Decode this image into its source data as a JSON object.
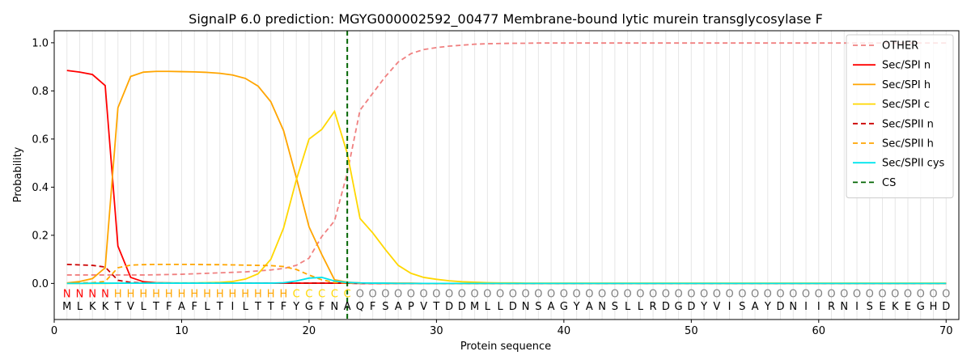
{
  "chart_data": {
    "type": "line",
    "title": "SignalP 6.0 prediction: MGYG000002592_00477 Membrane-bound lytic murein transglycosylase F",
    "xlabel": "Protein sequence",
    "ylabel": "Probability",
    "xlim": [
      0,
      71
    ],
    "ylim": [
      -0.15,
      1.05
    ],
    "xticks": [
      0,
      10,
      20,
      30,
      40,
      50,
      60,
      70
    ],
    "yticks": [
      0.0,
      0.2,
      0.4,
      0.6,
      0.8,
      1.0
    ],
    "ytick_labels": [
      "0.0",
      "0.2",
      "0.4",
      "0.6",
      "0.8",
      "1.0"
    ],
    "grid": "vertical lines at each residue",
    "legend_position": "top-right",
    "sequence": [
      "M",
      "L",
      "K",
      "K",
      "T",
      "V",
      "L",
      "T",
      "F",
      "A",
      "F",
      "L",
      "T",
      "I",
      "L",
      "T",
      "T",
      "F",
      "Y",
      "G",
      "F",
      "N",
      "A",
      "Q",
      "F",
      "S",
      "A",
      "P",
      "V",
      "T",
      "D",
      "D",
      "M",
      "L",
      "L",
      "D",
      "N",
      "S",
      "A",
      "G",
      "Y",
      "A",
      "N",
      "S",
      "L",
      "L",
      "R",
      "D",
      "G",
      "D",
      "Y",
      "V",
      "I",
      "S",
      "A",
      "Y",
      "D",
      "N",
      "I",
      "I",
      "R",
      "N",
      "I",
      "S",
      "E",
      "K",
      "E",
      "G",
      "H",
      "D"
    ],
    "labels": [
      "N",
      "N",
      "N",
      "N",
      "H",
      "H",
      "H",
      "H",
      "H",
      "H",
      "H",
      "H",
      "H",
      "H",
      "H",
      "H",
      "H",
      "H",
      "C",
      "C",
      "C",
      "C",
      "C",
      "O",
      "O",
      "O",
      "O",
      "O",
      "O",
      "O",
      "O",
      "O",
      "O",
      "O",
      "O",
      "O",
      "O",
      "O",
      "O",
      "O",
      "O",
      "O",
      "O",
      "O",
      "O",
      "O",
      "O",
      "O",
      "O",
      "O",
      "O",
      "O",
      "O",
      "O",
      "O",
      "O",
      "O",
      "O",
      "O",
      "O",
      "O",
      "O",
      "O",
      "O",
      "O",
      "O",
      "O",
      "O",
      "O",
      "O"
    ],
    "label_colors": {
      "N": "#ff0000",
      "H": "#ffa500",
      "C": "#ffd700",
      "O": "#808080"
    },
    "cleavage_site": 23,
    "series": [
      {
        "name": "OTHER",
        "color": "#f08080",
        "dash": "dashed",
        "values": [
          0.035,
          0.035,
          0.035,
          0.035,
          0.035,
          0.035,
          0.035,
          0.036,
          0.037,
          0.038,
          0.04,
          0.042,
          0.044,
          0.046,
          0.048,
          0.052,
          0.056,
          0.062,
          0.075,
          0.105,
          0.195,
          0.26,
          0.46,
          0.72,
          0.79,
          0.86,
          0.92,
          0.955,
          0.972,
          0.98,
          0.986,
          0.99,
          0.994,
          0.996,
          0.997,
          0.998,
          0.998,
          0.999,
          0.999,
          0.999,
          0.999,
          0.999,
          0.999,
          0.999,
          0.999,
          0.999,
          0.999,
          0.999,
          0.999,
          0.999,
          0.999,
          0.999,
          0.999,
          0.999,
          0.999,
          0.999,
          0.999,
          0.999,
          0.999,
          0.999,
          0.999,
          0.999,
          0.999,
          0.999,
          0.999,
          0.999,
          0.999,
          0.999,
          0.999,
          0.999
        ]
      },
      {
        "name": "Sec/SPI n",
        "color": "#ff0000",
        "dash": "solid",
        "values": [
          0.885,
          0.878,
          0.868,
          0.822,
          0.155,
          0.025,
          0.007,
          0.003,
          0.002,
          0.001,
          0.001,
          0.001,
          0.001,
          0.001,
          0.001,
          0.001,
          0.001,
          0.001,
          0.001,
          0.001,
          0.001,
          0.001,
          0.001,
          0,
          0,
          0,
          0,
          0,
          0,
          0,
          0,
          0,
          0,
          0,
          0,
          0,
          0,
          0,
          0,
          0,
          0,
          0,
          0,
          0,
          0,
          0,
          0,
          0,
          0,
          0,
          0,
          0,
          0,
          0,
          0,
          0,
          0,
          0,
          0,
          0,
          0,
          0,
          0,
          0,
          0,
          0,
          0,
          0,
          0,
          0
        ]
      },
      {
        "name": "Sec/SPI h",
        "color": "#ffa500",
        "dash": "solid",
        "values": [
          0.002,
          0.008,
          0.02,
          0.065,
          0.73,
          0.86,
          0.878,
          0.881,
          0.881,
          0.88,
          0.879,
          0.877,
          0.873,
          0.866,
          0.852,
          0.82,
          0.755,
          0.635,
          0.44,
          0.235,
          0.12,
          0.015,
          0.005,
          0.002,
          0.001,
          0.001,
          0.001,
          0.001,
          0,
          0,
          0,
          0,
          0,
          0,
          0,
          0,
          0,
          0,
          0,
          0,
          0,
          0,
          0,
          0,
          0,
          0,
          0,
          0,
          0,
          0,
          0,
          0,
          0,
          0,
          0,
          0,
          0,
          0,
          0,
          0,
          0,
          0,
          0,
          0,
          0,
          0,
          0,
          0,
          0,
          0
        ]
      },
      {
        "name": "Sec/SPI c",
        "color": "#ffd700",
        "dash": "solid",
        "values": [
          0,
          0,
          0,
          0,
          0.001,
          0.001,
          0.002,
          0.002,
          0.002,
          0.002,
          0.002,
          0.003,
          0.004,
          0.008,
          0.018,
          0.04,
          0.1,
          0.23,
          0.43,
          0.6,
          0.64,
          0.715,
          0.54,
          0.27,
          0.21,
          0.14,
          0.075,
          0.042,
          0.025,
          0.017,
          0.011,
          0.007,
          0.005,
          0.003,
          0.002,
          0.002,
          0.001,
          0.001,
          0.001,
          0.001,
          0.001,
          0.001,
          0.001,
          0.001,
          0.001,
          0.001,
          0.001,
          0.001,
          0.001,
          0.001,
          0.001,
          0.001,
          0.001,
          0.001,
          0.001,
          0.001,
          0.001,
          0.001,
          0.001,
          0.001,
          0.001,
          0.001,
          0.001,
          0.001,
          0.001,
          0.001,
          0.001,
          0.001,
          0.001,
          0.001
        ]
      },
      {
        "name": "Sec/SPII n",
        "color": "#cc0000",
        "dash": "dashed",
        "values": [
          0.079,
          0.077,
          0.075,
          0.068,
          0.013,
          0.004,
          0.002,
          0.001,
          0.001,
          0.001,
          0.001,
          0.001,
          0.001,
          0.001,
          0.001,
          0.001,
          0.001,
          0.001,
          0.001,
          0.001,
          0.001,
          0.001,
          0.001,
          0,
          0,
          0,
          0,
          0,
          0,
          0,
          0,
          0,
          0,
          0,
          0,
          0,
          0,
          0,
          0,
          0,
          0,
          0,
          0,
          0,
          0,
          0,
          0,
          0,
          0,
          0,
          0,
          0,
          0,
          0,
          0,
          0,
          0,
          0,
          0,
          0,
          0,
          0,
          0,
          0,
          0,
          0,
          0,
          0,
          0,
          0
        ]
      },
      {
        "name": "Sec/SPII h",
        "color": "#ffa500",
        "dash": "dashed",
        "values": [
          0.001,
          0.002,
          0.003,
          0.008,
          0.065,
          0.076,
          0.078,
          0.079,
          0.079,
          0.079,
          0.079,
          0.078,
          0.078,
          0.077,
          0.076,
          0.075,
          0.074,
          0.07,
          0.058,
          0.035,
          0.015,
          0.004,
          0.002,
          0.001,
          0.001,
          0,
          0,
          0,
          0,
          0,
          0,
          0,
          0,
          0,
          0,
          0,
          0,
          0,
          0,
          0,
          0,
          0,
          0,
          0,
          0,
          0,
          0,
          0,
          0,
          0,
          0,
          0,
          0,
          0,
          0,
          0,
          0,
          0,
          0,
          0,
          0,
          0,
          0,
          0,
          0,
          0,
          0,
          0,
          0,
          0
        ]
      },
      {
        "name": "Sec/SPII cys",
        "color": "#00e5ee",
        "dash": "solid",
        "values": [
          0,
          0,
          0.001,
          0.001,
          0.001,
          0.001,
          0.001,
          0.001,
          0.001,
          0.001,
          0.001,
          0.001,
          0.001,
          0.001,
          0.001,
          0.001,
          0.001,
          0.003,
          0.01,
          0.022,
          0.025,
          0.01,
          0.004,
          0.002,
          0.001,
          0.001,
          0,
          0,
          0,
          0,
          0,
          0,
          0,
          0,
          0,
          0,
          0,
          0,
          0,
          0,
          0,
          0,
          0,
          0,
          0,
          0,
          0,
          0,
          0,
          0,
          0,
          0,
          0,
          0,
          0,
          0,
          0,
          0,
          0,
          0,
          0,
          0,
          0,
          0,
          0,
          0,
          0,
          0,
          0,
          0
        ]
      },
      {
        "name": "CS",
        "color": "#006400",
        "dash": "dashed",
        "type": "vline",
        "x": 23
      }
    ]
  }
}
